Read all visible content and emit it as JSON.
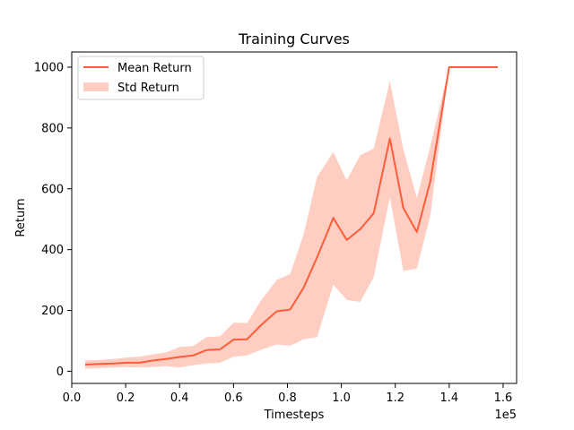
{
  "chart_data": {
    "type": "line",
    "title": "Training Curves",
    "xlabel": "Timesteps",
    "ylabel": "Return",
    "x_offset_label": "1e5",
    "xlim": [
      0.0,
      1.65
    ],
    "ylim": [
      -40,
      1050
    ],
    "x_ticks": [
      {
        "value": 0.0,
        "label": "0.0"
      },
      {
        "value": 0.2,
        "label": "0.2"
      },
      {
        "value": 0.4,
        "label": "0.4"
      },
      {
        "value": 0.6,
        "label": "0.6"
      },
      {
        "value": 0.8,
        "label": "0.8"
      },
      {
        "value": 1.0,
        "label": "1.0"
      },
      {
        "value": 1.2,
        "label": "1.2"
      },
      {
        "value": 1.4,
        "label": "1.4"
      },
      {
        "value": 1.6,
        "label": "1.6"
      }
    ],
    "y_ticks": [
      {
        "value": 0,
        "label": "0"
      },
      {
        "value": 200,
        "label": "200"
      },
      {
        "value": 400,
        "label": "400"
      },
      {
        "value": 600,
        "label": "600"
      },
      {
        "value": 800,
        "label": "800"
      },
      {
        "value": 1000,
        "label": "1000"
      }
    ],
    "grid": false,
    "legend": {
      "position": "top-left"
    },
    "series": [
      {
        "name": "Mean Return",
        "kind": "line",
        "color": "#ff5c39",
        "x": [
          0.05,
          0.1,
          0.15,
          0.2,
          0.25,
          0.3,
          0.35,
          0.4,
          0.45,
          0.5,
          0.55,
          0.6,
          0.65,
          0.7,
          0.76,
          0.81,
          0.86,
          0.91,
          0.97,
          1.02,
          1.07,
          1.12,
          1.18,
          1.23,
          1.28,
          1.33,
          1.4,
          1.58
        ],
        "values": [
          22,
          24,
          25,
          28,
          28,
          35,
          40,
          47,
          52,
          70,
          72,
          104,
          105,
          150,
          197,
          203,
          275,
          375,
          504,
          432,
          467,
          520,
          765,
          537,
          458,
          625,
          1000,
          1000
        ]
      },
      {
        "name": "Std Return",
        "kind": "band",
        "color": "#ff5c39",
        "fill_opacity": 0.3,
        "x": [
          0.05,
          0.1,
          0.15,
          0.2,
          0.25,
          0.3,
          0.35,
          0.4,
          0.45,
          0.5,
          0.55,
          0.6,
          0.65,
          0.7,
          0.76,
          0.81,
          0.86,
          0.91,
          0.97,
          1.02,
          1.07,
          1.12,
          1.18,
          1.23,
          1.28,
          1.33,
          1.4,
          1.58
        ],
        "lower": [
          8,
          10,
          12,
          14,
          12,
          14,
          17,
          12,
          20,
          25,
          28,
          48,
          52,
          70,
          88,
          84,
          105,
          112,
          285,
          235,
          228,
          310,
          572,
          330,
          338,
          512,
          1000,
          1000
        ],
        "upper": [
          36,
          37,
          40,
          45,
          48,
          55,
          62,
          80,
          83,
          112,
          115,
          160,
          158,
          230,
          300,
          320,
          450,
          640,
          721,
          628,
          710,
          732,
          955,
          730,
          570,
          740,
          1000,
          1000
        ]
      }
    ]
  }
}
